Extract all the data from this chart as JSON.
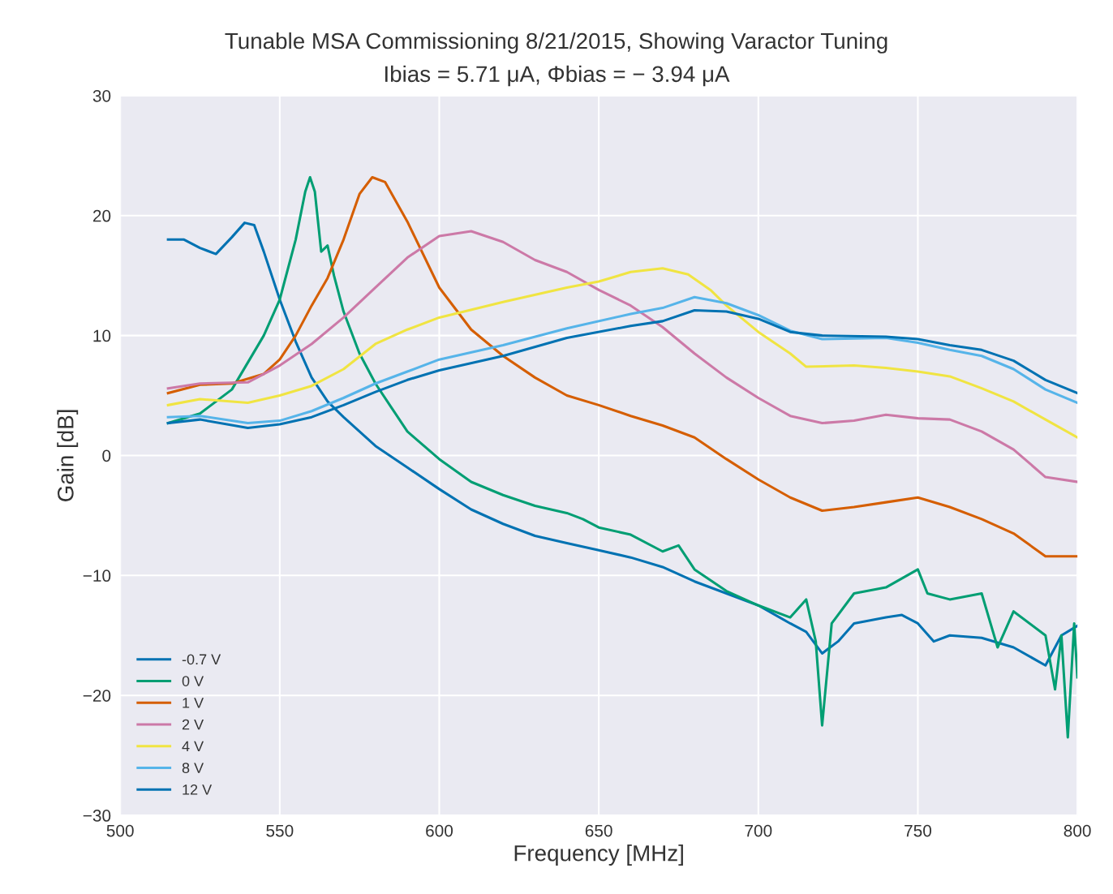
{
  "chart_data": {
    "type": "line",
    "title": "Tunable MSA Commissioning 8/21/2015, Showing Varactor Tuning",
    "subtitle": "Ibias = 5.71 μA, Φbias = − 3.94 μA",
    "xlabel": "Frequency [MHz]",
    "ylabel": "Gain [dB]",
    "xlim": [
      500,
      800
    ],
    "xticks": [
      500,
      550,
      600,
      650,
      700,
      750,
      800
    ],
    "ylim": [
      -30,
      30
    ],
    "yticks": [
      -30,
      -20,
      -10,
      0,
      10,
      20,
      30
    ],
    "grid": true,
    "legend": "bottom left",
    "line_style": "solid",
    "series": [
      {
        "name": "-0.7 V",
        "color": "#0072b2",
        "x": [
          515,
          520,
          525,
          530,
          535,
          539,
          542,
          545,
          550,
          555,
          560,
          565,
          570,
          575,
          580,
          590,
          600,
          610,
          620,
          630,
          640,
          650,
          660,
          670,
          680,
          690,
          700,
          710,
          715,
          720,
          725,
          730,
          740,
          745,
          750,
          755,
          760,
          770,
          780,
          790,
          795,
          800
        ],
        "values": [
          18,
          18,
          17.3,
          16.8,
          18.2,
          19.4,
          19.2,
          17,
          13,
          9.5,
          6.5,
          4.5,
          3.2,
          2,
          0.8,
          -1,
          -2.8,
          -4.5,
          -5.7,
          -6.7,
          -7.3,
          -7.9,
          -8.5,
          -9.3,
          -10.5,
          -11.5,
          -12.5,
          -14,
          -14.7,
          -16.5,
          -15.5,
          -14,
          -13.5,
          -13.3,
          -14,
          -15.5,
          -15,
          -15.2,
          -16,
          -17.5,
          -15,
          -14.2
        ]
      },
      {
        "name": "0 V",
        "color": "#009e73",
        "x": [
          515,
          525,
          535,
          545,
          550,
          555,
          558,
          559.5,
          561,
          563,
          565,
          567,
          570,
          575,
          580,
          585,
          590,
          600,
          610,
          620,
          630,
          640,
          645,
          650,
          660,
          670,
          675,
          680,
          690,
          700,
          710,
          715,
          718,
          720,
          723,
          730,
          740,
          750,
          753,
          760,
          770,
          775,
          780,
          790,
          793,
          795,
          797,
          799,
          800
        ],
        "values": [
          2.7,
          3.5,
          5.5,
          10,
          13,
          18,
          22,
          23.2,
          22,
          17,
          17.5,
          15,
          12,
          8.5,
          6,
          4,
          2,
          -0.3,
          -2.2,
          -3.3,
          -4.2,
          -4.8,
          -5.3,
          -6,
          -6.6,
          -8,
          -7.5,
          -9.5,
          -11.3,
          -12.5,
          -13.5,
          -12,
          -15.5,
          -22.5,
          -14,
          -11.5,
          -11,
          -9.5,
          -11.5,
          -12,
          -11.5,
          -16,
          -13,
          -15,
          -19.5,
          -15,
          -23.5,
          -14,
          -18.5
        ]
      },
      {
        "name": "1 V",
        "color": "#d55e00",
        "x": [
          515,
          525,
          535,
          545,
          550,
          555,
          560,
          565,
          570,
          575,
          579,
          583,
          590,
          600,
          610,
          620,
          630,
          640,
          650,
          660,
          670,
          680,
          690,
          700,
          710,
          720,
          730,
          740,
          750,
          760,
          770,
          780,
          790,
          800
        ],
        "values": [
          5.2,
          5.9,
          6,
          6.8,
          8,
          10,
          12.5,
          14.8,
          18,
          21.8,
          23.2,
          22.8,
          19.5,
          14,
          10.5,
          8.3,
          6.5,
          5,
          4.2,
          3.3,
          2.5,
          1.5,
          -0.3,
          -2,
          -3.5,
          -4.6,
          -4.3,
          -3.9,
          -3.5,
          -4.3,
          -5.3,
          -6.5,
          -8.4,
          -8.4
        ]
      },
      {
        "name": "2 V",
        "color": "#cc79a7",
        "x": [
          515,
          525,
          540,
          550,
          560,
          570,
          580,
          590,
          600,
          610,
          620,
          630,
          640,
          650,
          660,
          670,
          680,
          690,
          700,
          710,
          720,
          730,
          740,
          750,
          760,
          770,
          780,
          790,
          800
        ],
        "values": [
          5.6,
          6,
          6.1,
          7.5,
          9.3,
          11.5,
          14,
          16.5,
          18.3,
          18.7,
          17.8,
          16.3,
          15.3,
          13.8,
          12.5,
          10.7,
          8.5,
          6.5,
          4.8,
          3.3,
          2.7,
          2.9,
          3.4,
          3.1,
          3,
          2,
          0.5,
          -1.8,
          -2.2
        ]
      },
      {
        "name": "4 V",
        "color": "#f0e442",
        "x": [
          515,
          525,
          540,
          550,
          560,
          570,
          580,
          590,
          600,
          620,
          640,
          650,
          660,
          670,
          678,
          685,
          690,
          700,
          710,
          715,
          730,
          740,
          750,
          760,
          770,
          780,
          790,
          800
        ],
        "values": [
          4.2,
          4.7,
          4.4,
          5,
          5.8,
          7.2,
          9.3,
          10.5,
          11.5,
          12.8,
          14,
          14.5,
          15.3,
          15.6,
          15.1,
          13.8,
          12.5,
          10.3,
          8.5,
          7.4,
          7.5,
          7.3,
          7,
          6.6,
          5.6,
          4.5,
          3,
          1.5
        ]
      },
      {
        "name": "8 V",
        "color": "#56b4e9",
        "x": [
          515,
          525,
          540,
          550,
          560,
          570,
          580,
          590,
          600,
          620,
          640,
          660,
          670,
          680,
          690,
          700,
          710,
          720,
          740,
          750,
          760,
          770,
          780,
          790,
          800
        ],
        "values": [
          3.2,
          3.3,
          2.7,
          2.9,
          3.7,
          4.8,
          6,
          7,
          8,
          9.2,
          10.6,
          11.8,
          12.3,
          13.2,
          12.7,
          11.7,
          10.4,
          9.7,
          9.8,
          9.4,
          8.8,
          8.3,
          7.2,
          5.5,
          4.4
        ]
      },
      {
        "name": "12 V",
        "color": "#0072b2",
        "x": [
          515,
          525,
          540,
          550,
          560,
          570,
          580,
          590,
          600,
          620,
          640,
          660,
          670,
          680,
          690,
          700,
          710,
          720,
          740,
          750,
          760,
          770,
          780,
          790,
          800
        ],
        "values": [
          2.7,
          3.0,
          2.3,
          2.6,
          3.2,
          4.2,
          5.3,
          6.3,
          7.1,
          8.3,
          9.8,
          10.8,
          11.2,
          12.1,
          12.0,
          11.4,
          10.3,
          10.0,
          9.9,
          9.7,
          9.2,
          8.8,
          7.9,
          6.3,
          5.2
        ]
      }
    ]
  }
}
